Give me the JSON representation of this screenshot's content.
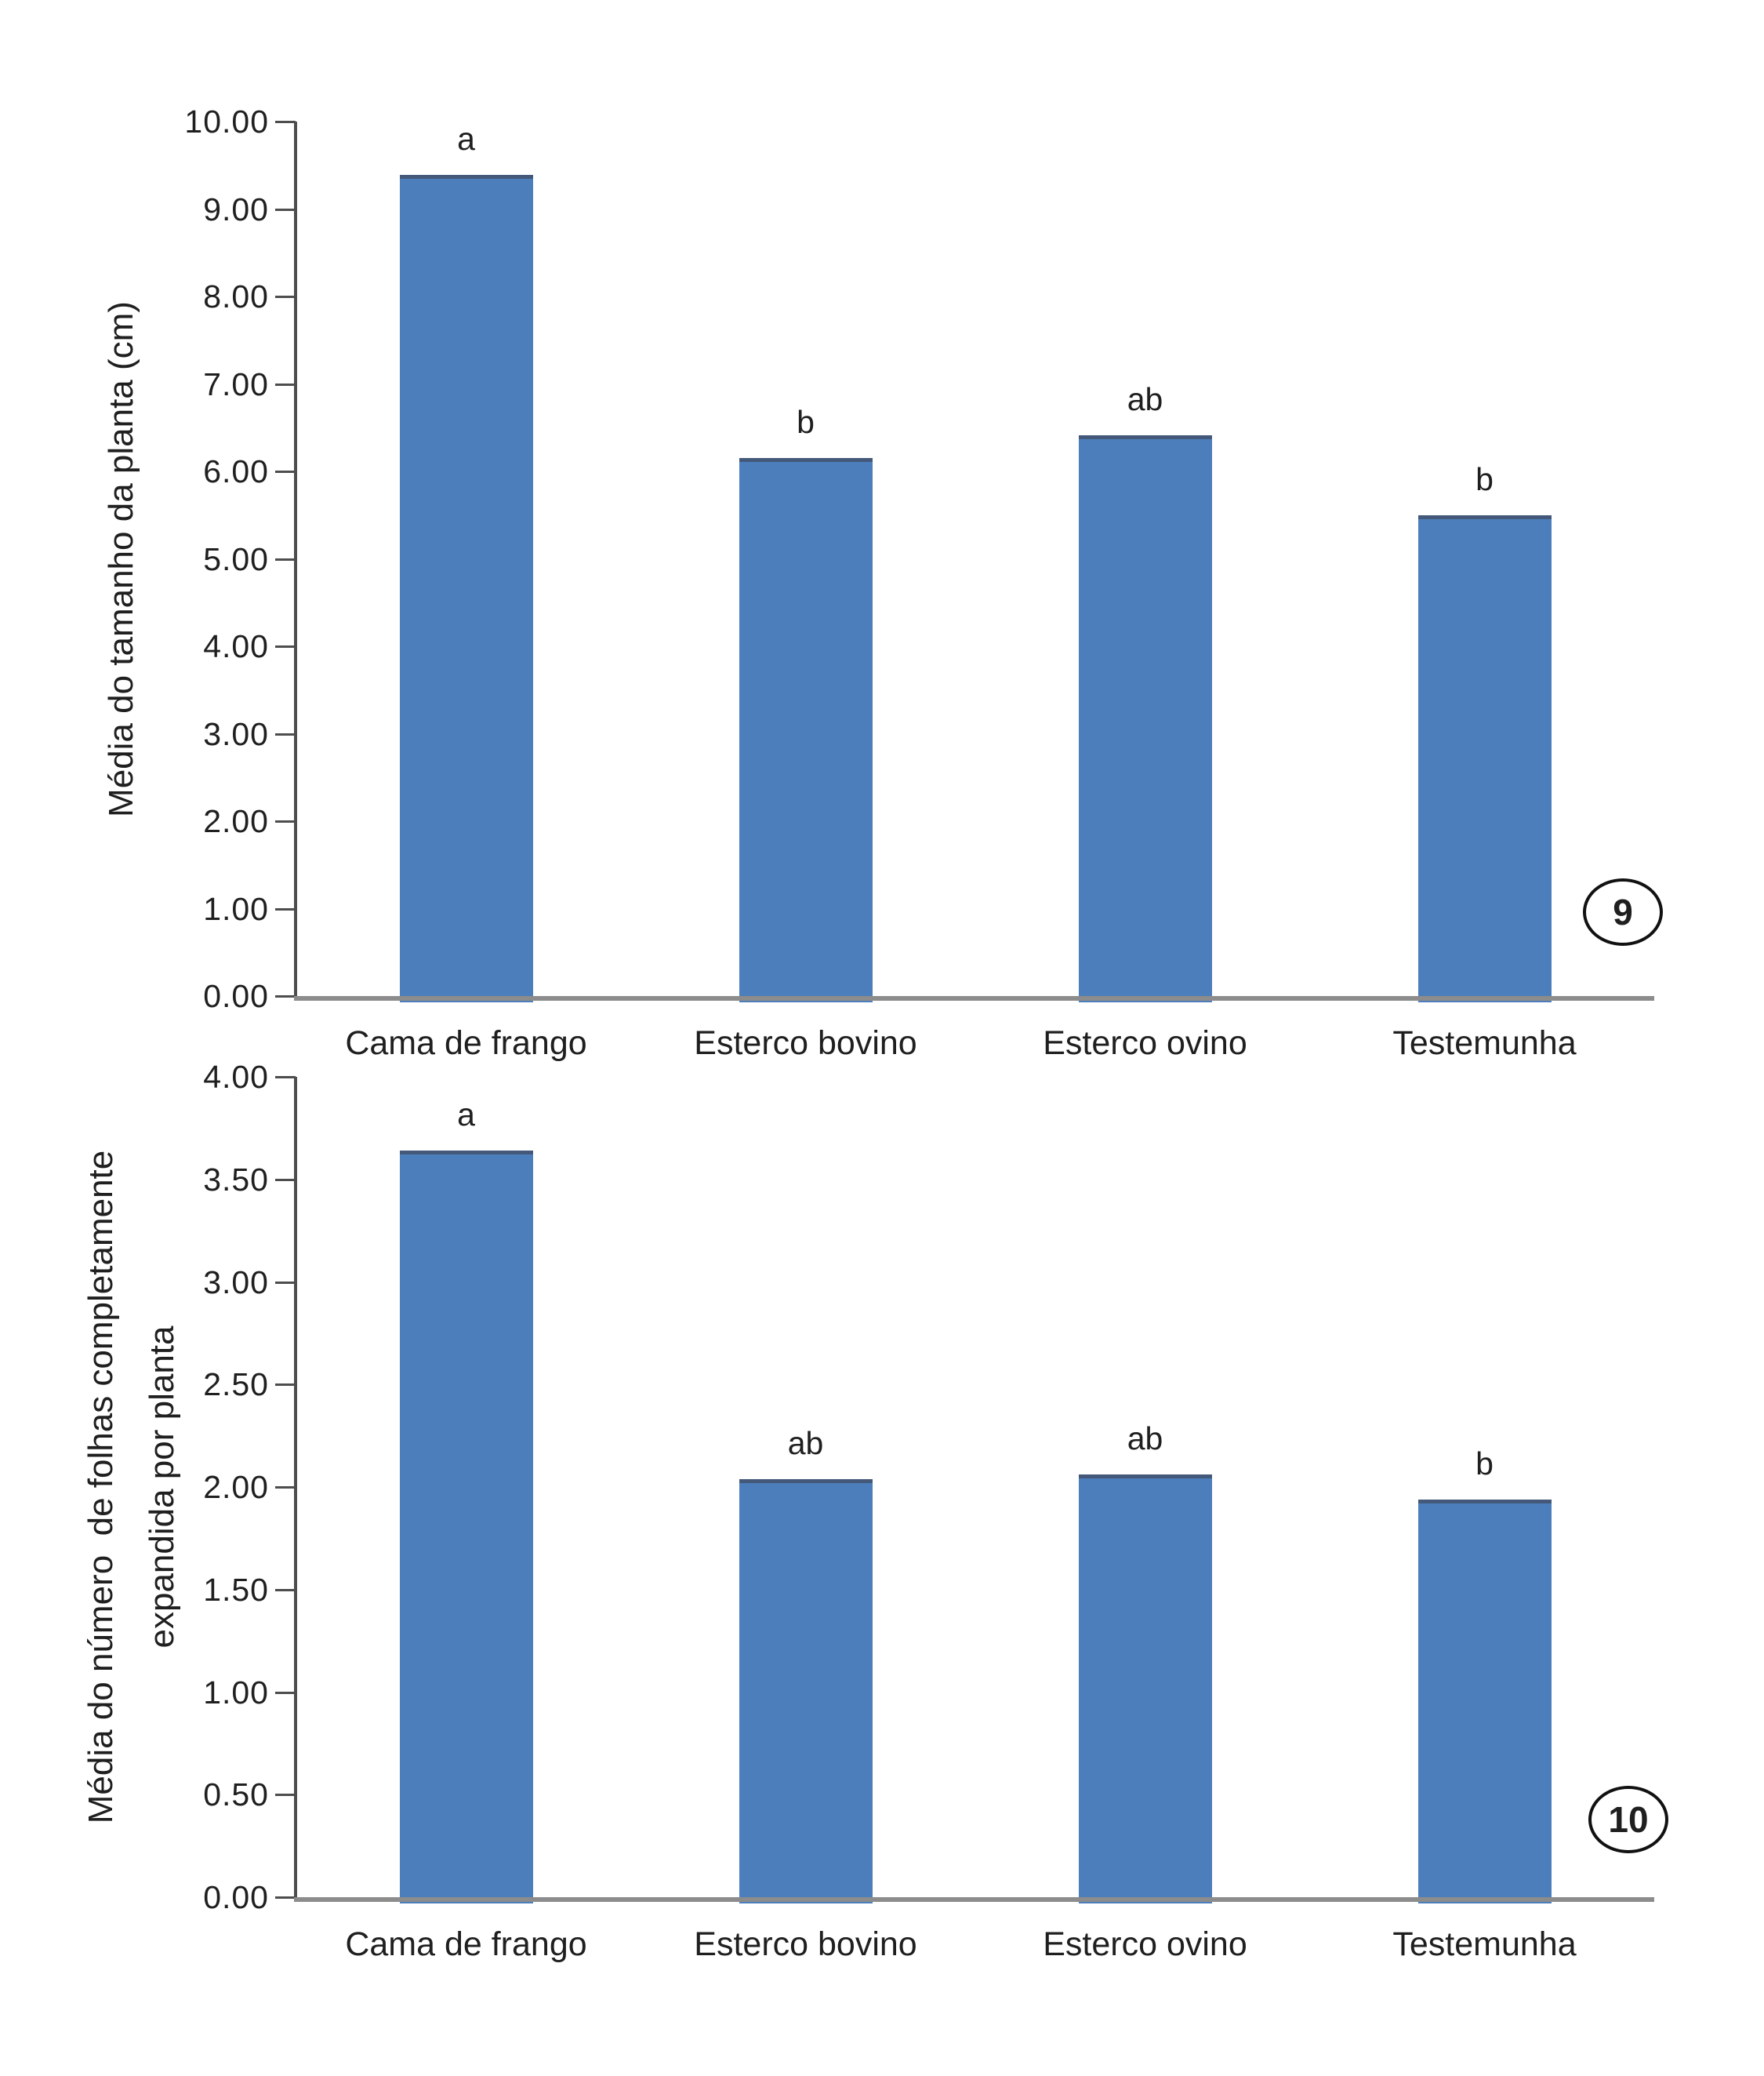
{
  "figure": {
    "background": "#ffffff",
    "bar_color": "#4b7ebb",
    "bar_edge_color": "#44597a",
    "axis_color": "#4d4d4d",
    "baseline_color": "#8c8c8c",
    "text_color": "#1f1f1f"
  },
  "chart_data": [
    {
      "type": "bar",
      "figure_number": "9",
      "title": "",
      "ylabel_lines": [
        "Média do tamanho da planta (cm)"
      ],
      "xlabel": "",
      "categories": [
        "Cama de frango",
        "Esterco bovino",
        "Esterco ovino",
        "Testemunha"
      ],
      "values": [
        9.39,
        6.15,
        6.41,
        5.5
      ],
      "significance_letters": [
        "a",
        "b",
        "ab",
        "b"
      ],
      "ytick_labels": [
        "10.00",
        "9.00",
        "8.00",
        "7.00",
        "6.00",
        "5.00",
        "4.00",
        "3.00",
        "2.00",
        "1.00",
        "0.00"
      ],
      "ylim": [
        0,
        10
      ],
      "ytick_step": 1.0,
      "grid": false,
      "legend": null
    },
    {
      "type": "bar",
      "figure_number": "10",
      "title": "",
      "ylabel_lines": [
        "Média do número  de folhas completamente",
        "expandida por planta"
      ],
      "xlabel": "",
      "categories": [
        "Cama de frango",
        "Esterco bovino",
        "Esterco ovino",
        "Testemunha"
      ],
      "values": [
        3.64,
        2.04,
        2.06,
        1.94
      ],
      "significance_letters": [
        "a",
        "ab",
        "ab",
        "b"
      ],
      "ytick_labels": [
        "4.00",
        "3.50",
        "3.00",
        "2.50",
        "2.00",
        "1.50",
        "1.00",
        "0.50",
        "0.00"
      ],
      "ylim": [
        0,
        4
      ],
      "ytick_step": 0.5,
      "grid": false,
      "legend": null
    }
  ]
}
